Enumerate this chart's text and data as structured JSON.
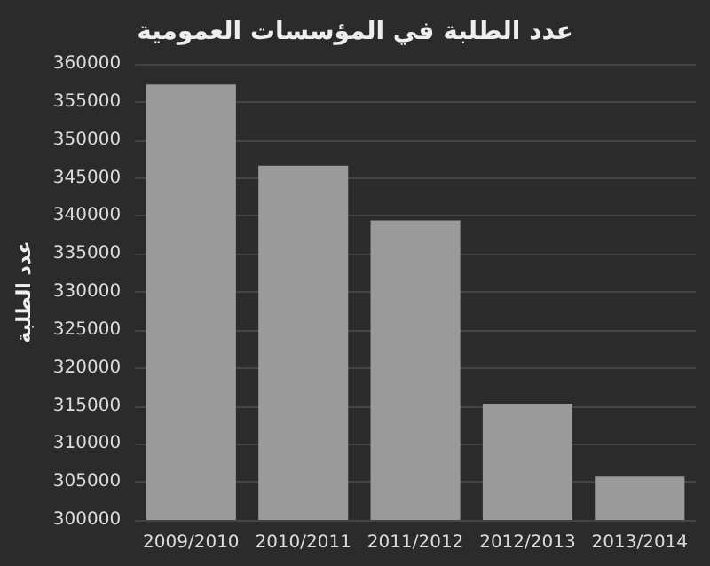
{
  "chart_data": {
    "type": "bar",
    "title": "عدد الطلبة في المؤسسات العمومية",
    "ylabel": "عدد الطلبة",
    "categories": [
      "2009/2010",
      "2010/2011",
      "2011/2012",
      "2012/2013",
      "2013/2014"
    ],
    "values": [
      357300,
      346600,
      339400,
      315300,
      305700
    ],
    "color": "#9a9a9a",
    "ylim": [
      300000,
      360000
    ],
    "yticks": [
      300000,
      305000,
      310000,
      315000,
      320000,
      325000,
      330000,
      335000,
      340000,
      345000,
      350000,
      355000,
      360000
    ],
    "grid": "y"
  }
}
